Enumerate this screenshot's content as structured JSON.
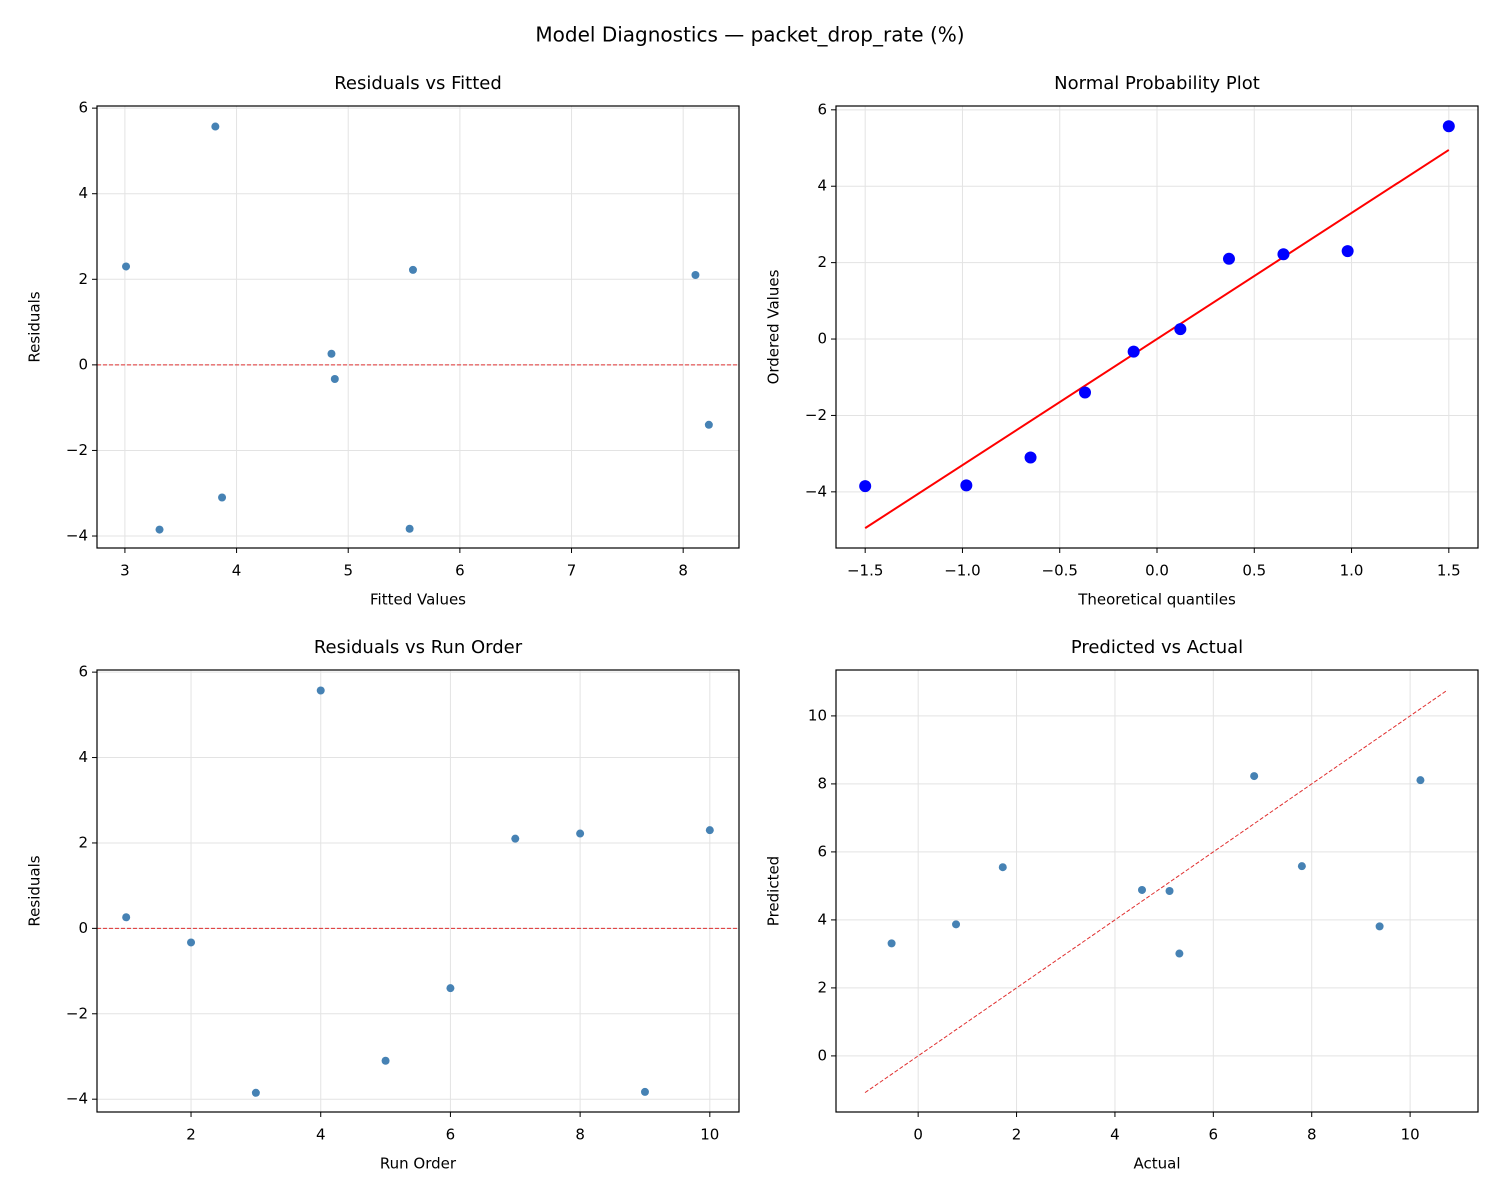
{
  "title": "Model Diagnostics — packet_drop_rate (%)",
  "chart_data": [
    {
      "type": "scatter",
      "title": "Residuals vs Fitted",
      "xlabel": "Fitted Values",
      "ylabel": "Residuals",
      "color": "#4682b4",
      "x": [
        4.85,
        4.88,
        3.31,
        3.81,
        3.87,
        8.23,
        8.11,
        5.58,
        5.55,
        3.01
      ],
      "y": [
        0.26,
        -0.33,
        -3.85,
        5.57,
        -3.1,
        -1.4,
        2.1,
        2.22,
        -3.83,
        2.3
      ],
      "hline": 0,
      "hline_color": "#e03030",
      "xlim": [
        2.75,
        8.5
      ],
      "ylim": [
        -4.28,
        6.05
      ],
      "xticks": [
        3,
        4,
        5,
        6,
        7,
        8
      ],
      "yticks": [
        {
          "value": -4,
          "label": "−4"
        },
        {
          "value": -2,
          "label": "−2"
        },
        0,
        2,
        4,
        6
      ],
      "grid": true
    },
    {
      "type": "scatter",
      "title": "Normal Probability Plot",
      "xlabel": "Theoretical quantiles",
      "ylabel": "Ordered Values",
      "color": "#0000ff",
      "x": [
        -1.5,
        -0.98,
        -0.65,
        -0.37,
        -0.12,
        0.12,
        0.37,
        0.65,
        0.98,
        1.5
      ],
      "y": [
        -3.85,
        -3.83,
        -3.1,
        -1.4,
        -0.33,
        0.26,
        2.1,
        2.22,
        2.3,
        5.57
      ],
      "line": {
        "x": [
          -1.5,
          1.5
        ],
        "y": [
          -4.95,
          4.95
        ],
        "color": "#ff0000",
        "dashed": false
      },
      "xlim": [
        -1.65,
        1.65
      ],
      "ylim": [
        -5.47,
        6.1
      ],
      "xticks": [
        {
          "value": -1.5,
          "label": "−1.5"
        },
        {
          "value": -1.0,
          "label": "−1.0"
        },
        {
          "value": -0.5,
          "label": "−0.5"
        },
        {
          "value": 0,
          "label": "0.0"
        },
        0.5,
        {
          "value": 1.0,
          "label": "1.0"
        },
        1.5
      ],
      "yticks": [
        {
          "value": -4,
          "label": "−4"
        },
        {
          "value": -2,
          "label": "−2"
        },
        0,
        2,
        4,
        6
      ],
      "grid": true
    },
    {
      "type": "scatter",
      "title": "Residuals vs Run Order",
      "xlabel": "Run Order",
      "ylabel": "Residuals",
      "color": "#4682b4",
      "x": [
        1,
        2,
        3,
        4,
        5,
        6,
        7,
        8,
        9,
        10
      ],
      "y": [
        0.26,
        -0.33,
        -3.85,
        5.57,
        -3.1,
        -1.4,
        2.1,
        2.22,
        -3.83,
        2.3
      ],
      "hline": 0,
      "hline_color": "#e03030",
      "xlim": [
        0.55,
        10.45
      ],
      "ylim": [
        -4.3,
        6.05
      ],
      "xticks": [
        2,
        4,
        6,
        8,
        10
      ],
      "yticks": [
        {
          "value": -4,
          "label": "−4"
        },
        {
          "value": -2,
          "label": "−2"
        },
        0,
        2,
        4,
        6
      ],
      "grid": true
    },
    {
      "type": "scatter",
      "title": "Predicted vs Actual",
      "xlabel": "Actual",
      "ylabel": "Predicted",
      "color": "#4682b4",
      "x": [
        5.11,
        4.55,
        -0.54,
        9.38,
        0.77,
        6.83,
        10.21,
        7.8,
        1.72,
        5.31
      ],
      "y": [
        4.85,
        4.88,
        3.31,
        3.81,
        3.87,
        8.23,
        8.11,
        5.58,
        5.55,
        3.01
      ],
      "line": {
        "x": [
          -1.08,
          10.76
        ],
        "y": [
          -1.08,
          10.76
        ],
        "color": "#e03030",
        "dashed": true
      },
      "xlim": [
        -1.67,
        11.38
      ],
      "ylim": [
        -1.65,
        11.35
      ],
      "xticks": [
        0,
        2,
        4,
        6,
        8,
        10
      ],
      "yticks": [
        0,
        2,
        4,
        6,
        8,
        10
      ],
      "grid": true
    }
  ]
}
